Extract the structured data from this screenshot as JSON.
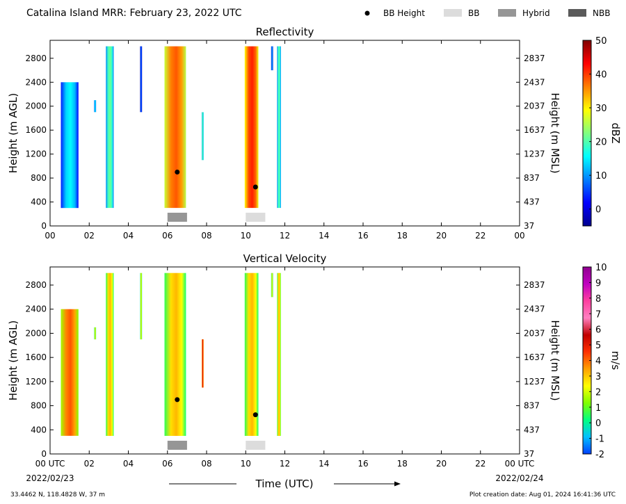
{
  "header": {
    "title": "Catalina Island MRR:  February 23, 2022 UTC",
    "legend": [
      {
        "label": "BB Height",
        "marker": "dot",
        "color": "#000000"
      },
      {
        "label": "BB",
        "marker": "rect",
        "color": "#dcdcdc"
      },
      {
        "label": "Hybrid",
        "marker": "rect",
        "color": "#969696"
      },
      {
        "label": "NBB",
        "marker": "rect",
        "color": "#5a5a5a"
      }
    ]
  },
  "footer": {
    "location": "33.4462 N, 118.4828 W, 37 m",
    "creation": "Plot creation date: Aug 01, 2024 16:41:36 UTC",
    "xlabel": "Time (UTC)",
    "start_date": "2022/02/23",
    "end_date": "2022/02/24"
  },
  "chart_data": [
    {
      "type": "heatmap",
      "title": "Reflectivity",
      "ylabel": "Height (m AGL)",
      "ylabel_right": "Height (m MSL)",
      "xticks": [
        "00",
        "02",
        "04",
        "06",
        "08",
        "10",
        "12",
        "14",
        "16",
        "18",
        "20",
        "22",
        "00"
      ],
      "yticks": [
        0,
        400,
        800,
        1200,
        1600,
        2000,
        2400,
        2800
      ],
      "yticks_right": [
        37,
        437,
        837,
        1237,
        1637,
        2037,
        2437,
        2837
      ],
      "ylim": [
        0,
        3100
      ],
      "xlim_hours": [
        0,
        24
      ],
      "colorbar": {
        "label": "dBZ",
        "range": [
          -5,
          50
        ],
        "ticks": [
          0,
          10,
          20,
          30,
          40,
          50
        ],
        "stops": [
          "#00008f",
          "#0000ff",
          "#0080ff",
          "#00ffff",
          "#80ff80",
          "#ffff00",
          "#ff8000",
          "#ff0000",
          "#800000"
        ]
      },
      "echo_columns": [
        {
          "t0": 0.55,
          "t1": 1.45,
          "h0": 300,
          "h1": 2400,
          "value": 10
        },
        {
          "t0": 2.25,
          "t1": 2.35,
          "h0": 1900,
          "h1": 2100,
          "value": 10
        },
        {
          "t0": 2.85,
          "t1": 3.25,
          "h0": 300,
          "h1": 3000,
          "value": 16
        },
        {
          "t0": 4.6,
          "t1": 4.7,
          "h0": 1900,
          "h1": 3000,
          "value": 2
        },
        {
          "t0": 5.85,
          "t1": 6.95,
          "h0": 300,
          "h1": 3000,
          "value": 33
        },
        {
          "t0": 7.75,
          "t1": 7.85,
          "h0": 1100,
          "h1": 1900,
          "value": 15
        },
        {
          "t0": 9.95,
          "t1": 10.65,
          "h0": 300,
          "h1": 3000,
          "value": 36
        },
        {
          "t0": 11.3,
          "t1": 11.4,
          "h0": 2600,
          "h1": 3000,
          "value": 5
        },
        {
          "t0": 11.6,
          "t1": 11.8,
          "h0": 300,
          "h1": 3000,
          "value": 15
        }
      ],
      "bb_height": [
        {
          "t": 6.5,
          "h": 900
        },
        {
          "t": 10.5,
          "h": 650
        }
      ],
      "bb_class": [
        {
          "t0": 6.0,
          "t1": 7.0,
          "class": "Hybrid"
        },
        {
          "t0": 10.0,
          "t1": 11.0,
          "class": "BB"
        }
      ]
    },
    {
      "type": "heatmap",
      "title": "Vertical Velocity",
      "ylabel": "Height (m AGL)",
      "ylabel_right": "Height (m MSL)",
      "xticks": [
        "00 UTC",
        "02",
        "04",
        "06",
        "08",
        "10",
        "12",
        "14",
        "16",
        "18",
        "20",
        "22",
        "00 UTC"
      ],
      "yticks": [
        0,
        400,
        800,
        1200,
        1600,
        2000,
        2400,
        2800
      ],
      "yticks_right": [
        37,
        437,
        837,
        1237,
        1637,
        2037,
        2437,
        2837
      ],
      "ylim": [
        0,
        3100
      ],
      "xlim_hours": [
        0,
        24
      ],
      "colorbar": {
        "label": "m/s",
        "range": [
          -2,
          10
        ],
        "ticks": [
          -2,
          -1,
          0,
          1,
          2,
          3,
          4,
          5,
          6,
          7,
          8,
          9,
          10
        ],
        "stops": [
          "#0040ff",
          "#00c0ff",
          "#00ff80",
          "#80ff00",
          "#ffff00",
          "#ffa000",
          "#ff3000",
          "#c00000",
          "#ff80c0",
          "#ff40a0",
          "#c000c0",
          "#900090"
        ]
      },
      "echo_columns": [
        {
          "t0": 0.55,
          "t1": 1.45,
          "h0": 300,
          "h1": 2400,
          "value": 3
        },
        {
          "t0": 2.25,
          "t1": 2.35,
          "h0": 1900,
          "h1": 2100,
          "value": 1
        },
        {
          "t0": 2.85,
          "t1": 3.25,
          "h0": 300,
          "h1": 3000,
          "value": 2
        },
        {
          "t0": 4.6,
          "t1": 4.7,
          "h0": 1900,
          "h1": 3000,
          "value": 1
        },
        {
          "t0": 5.85,
          "t1": 6.95,
          "h0": 300,
          "h1": 3000,
          "value": 2
        },
        {
          "t0": 7.75,
          "t1": 7.85,
          "h0": 1100,
          "h1": 1900,
          "value": 4
        },
        {
          "t0": 9.95,
          "t1": 10.65,
          "h0": 300,
          "h1": 3000,
          "value": 2
        },
        {
          "t0": 11.3,
          "t1": 11.4,
          "h0": 2600,
          "h1": 3000,
          "value": 1
        },
        {
          "t0": 11.6,
          "t1": 11.8,
          "h0": 300,
          "h1": 3000,
          "value": 2
        }
      ],
      "bb_height": [
        {
          "t": 6.5,
          "h": 900
        },
        {
          "t": 10.5,
          "h": 650
        }
      ],
      "bb_class": [
        {
          "t0": 6.0,
          "t1": 7.0,
          "class": "Hybrid"
        },
        {
          "t0": 10.0,
          "t1": 11.0,
          "class": "BB"
        }
      ]
    }
  ]
}
